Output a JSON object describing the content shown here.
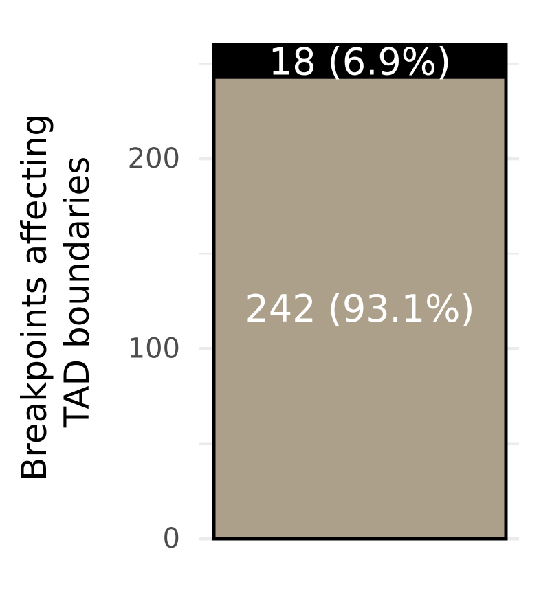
{
  "chart_data": {
    "type": "bar",
    "stacked": true,
    "categories": [
      ""
    ],
    "series": [
      {
        "values": [
          242
        ],
        "label": "242 (93.1%)",
        "color": "#ada08b"
      },
      {
        "values": [
          18
        ],
        "label": "18 (6.9%)",
        "color": "#000000"
      }
    ],
    "ylabel_lines": [
      "Breakpoints affecting",
      "TAD boundaries"
    ],
    "yticks": [
      0,
      100,
      200
    ],
    "ytick_labels": [
      "0",
      "100",
      "200"
    ],
    "ylim": [
      0,
      260
    ],
    "grid": true,
    "bar_outline_color": "#000000",
    "grid_color": "#ebebeb"
  }
}
